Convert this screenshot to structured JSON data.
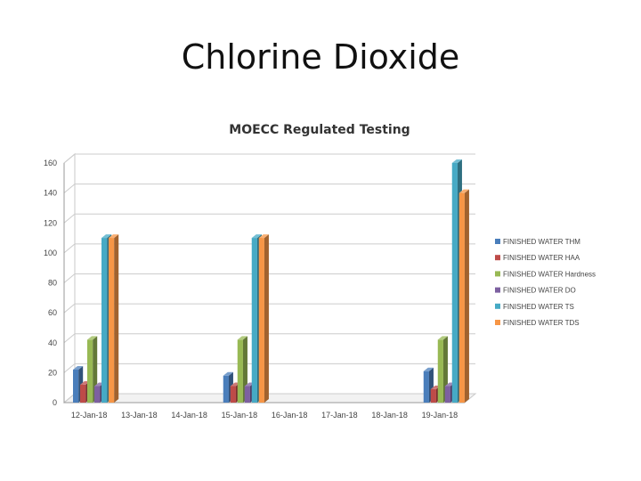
{
  "slide": {
    "title": "Chlorine Dioxide"
  },
  "chart_data": {
    "type": "bar",
    "style": "3d-clustered-column",
    "title": "MOECC Regulated Testing",
    "xlabel": "",
    "ylabel": "",
    "ylim": [
      0,
      160
    ],
    "yticks": [
      0,
      20,
      40,
      60,
      80,
      100,
      120,
      140,
      160
    ],
    "grid": true,
    "legend_position": "right",
    "categories": [
      "12-Jan-18",
      "13-Jan-18",
      "14-Jan-18",
      "15-Jan-18",
      "16-Jan-18",
      "17-Jan-18",
      "18-Jan-18",
      "19-Jan-18"
    ],
    "series": [
      {
        "name": "FINISHED WATER THM",
        "color": "#4a7ebb",
        "values": [
          22,
          0,
          0,
          18,
          0,
          0,
          0,
          21
        ]
      },
      {
        "name": "FINISHED WATER HAA",
        "color": "#be4b48",
        "values": [
          12,
          0,
          0,
          11,
          0,
          0,
          0,
          9
        ]
      },
      {
        "name": "FINISHED WATER Hardness",
        "color": "#98b954",
        "values": [
          42,
          0,
          0,
          42,
          0,
          0,
          0,
          42
        ]
      },
      {
        "name": "FINISHED WATER DO",
        "color": "#7d60a0",
        "values": [
          11,
          0,
          0,
          11,
          0,
          0,
          0,
          11
        ]
      },
      {
        "name": "FINISHED WATER TS",
        "color": "#46aac5",
        "values": [
          110,
          0,
          0,
          110,
          0,
          0,
          0,
          160
        ]
      },
      {
        "name": "FINISHED WATER TDS",
        "color": "#f79646",
        "values": [
          110,
          0,
          0,
          110,
          0,
          0,
          0,
          140
        ]
      }
    ]
  }
}
